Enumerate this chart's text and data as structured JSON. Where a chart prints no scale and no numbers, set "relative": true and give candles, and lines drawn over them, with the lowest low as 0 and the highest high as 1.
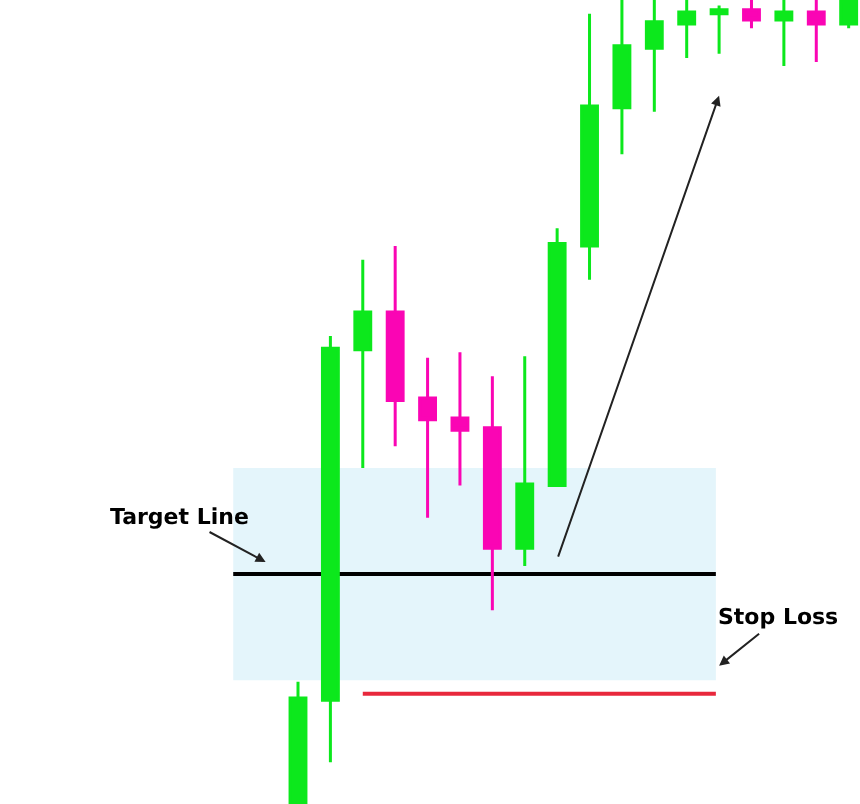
{
  "chart_data": {
    "type": "candlestick",
    "relative": true,
    "categories": [
      null,
      null,
      null,
      null,
      null,
      null,
      null,
      null,
      null,
      null,
      null,
      null,
      null,
      null,
      null,
      null,
      null,
      null
    ],
    "ohlc": [
      [
        0,
        0.152,
        0,
        0.132
      ],
      [
        0.129,
        0.582,
        0.052,
        0.567
      ],
      [
        0.565,
        0.677,
        0.418,
        0.612
      ],
      [
        0.612,
        0.694,
        0.445,
        0.502
      ],
      [
        0.505,
        0.555,
        0.356,
        0.478
      ],
      [
        0.48,
        0.562,
        0.396,
        0.465
      ],
      [
        0.468,
        0.532,
        0.241,
        0.318
      ],
      [
        0.318,
        0.557,
        0.296,
        0.398
      ],
      [
        0.396,
        0.716,
        0.396,
        0.697
      ],
      [
        0.694,
        0.983,
        0.652,
        0.868
      ],
      [
        0.866,
        1,
        0.808,
        0.943
      ],
      [
        0.94,
        1,
        0.861,
        0.973
      ],
      [
        0.97,
        1,
        0.928,
        0.985
      ],
      [
        0.983,
        0.993,
        0.933,
        0.988
      ],
      [
        0.988,
        1,
        0.965,
        0.975
      ],
      [
        0.975,
        1,
        0.918,
        0.985
      ],
      [
        0.985,
        1,
        0.923,
        0.97
      ],
      [
        0.97,
        1,
        0.965,
        1
      ]
    ],
    "colors": [
      "#0ce81c",
      "#0ce81c",
      "#0ce81c",
      "#fa05b4",
      "#fa05b4",
      "#fa05b4",
      "#fa05b4",
      "#0ce81c",
      "#0ce81c",
      "#0ce81c",
      "#0ce81c",
      "#0ce81c",
      "#0ce81c",
      "#0ce81c",
      "#fa05b4",
      "#0ce81c",
      "#fa05b4",
      "#0ce81c"
    ],
    "ref_lines": [
      {
        "axis": "y",
        "value": 0.286,
        "label": "Target Line",
        "color": "#000000"
      },
      {
        "axis": "y",
        "value": 0.137,
        "label": "Stop Loss",
        "color": "#e8283c"
      }
    ],
    "bands": [
      {
        "axis": "y",
        "from": 0.154,
        "to": 0.418,
        "color": "#e4f5fb"
      }
    ],
    "grid": false,
    "legend": false
  }
}
